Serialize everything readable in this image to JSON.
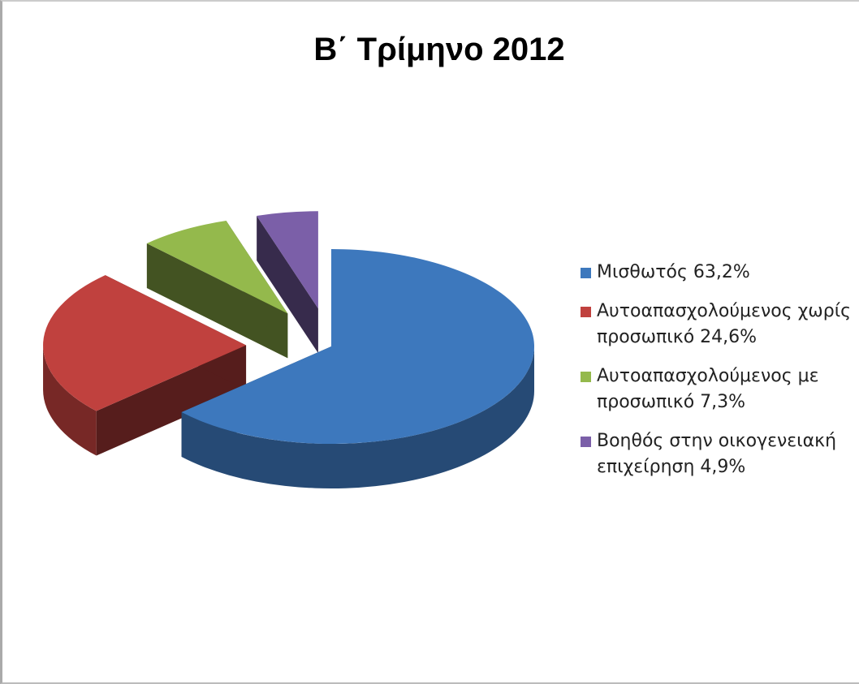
{
  "chart_data": {
    "type": "pie",
    "title": "Β΄ Τρίμηνο 2012",
    "categories": [
      "Μισθωτός",
      "Αυτοαπασχολούμενος χωρίς προσωπικό",
      "Αυτοαπασχολούμενος με προσωπικό",
      "Βοηθός στην οικογενειακή επιχείρηση"
    ],
    "values": [
      63.2,
      24.6,
      7.3,
      4.9
    ],
    "value_labels": [
      "63,2%",
      "24,6%",
      "7,3%",
      "4,9%"
    ],
    "colors": [
      "#3d78bd",
      "#c0413e",
      "#94b94c",
      "#7b5fa8"
    ],
    "legend": "right"
  }
}
